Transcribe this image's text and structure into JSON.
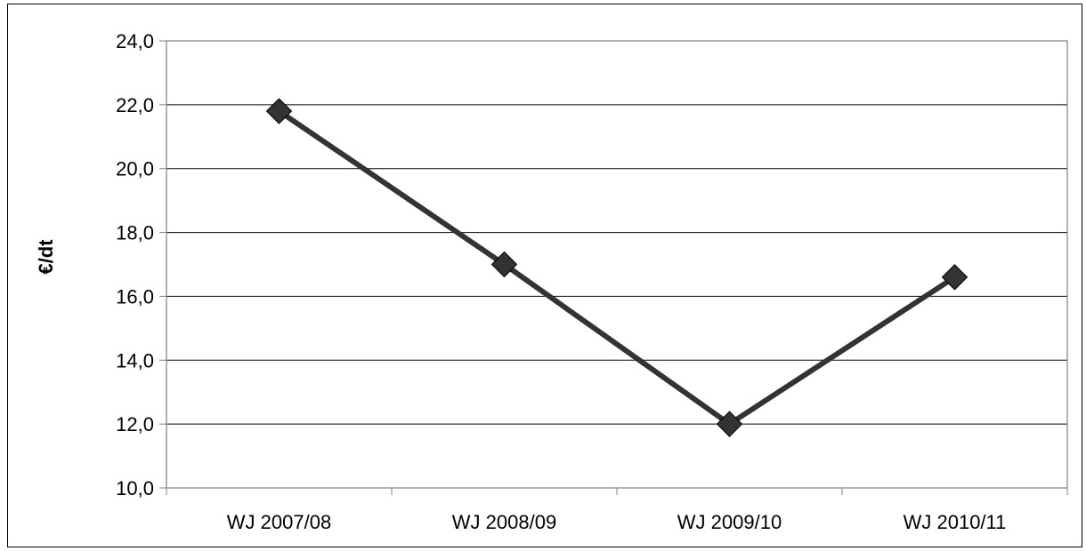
{
  "chart_data": {
    "type": "line",
    "title": "",
    "xlabel": "",
    "ylabel": "€/dt",
    "categories": [
      "WJ 2007/08",
      "WJ 2008/09",
      "WJ 2009/10",
      "WJ 2010/11"
    ],
    "series": [
      {
        "values": [
          21.8,
          17.0,
          12.0,
          16.6
        ]
      }
    ],
    "ylim": [
      10.0,
      24.0
    ],
    "yticks": [
      "10,0",
      "12,0",
      "14,0",
      "16,0",
      "18,0",
      "20,0",
      "22,0",
      "24,0"
    ],
    "grid": "horizontal",
    "legend": "none",
    "colors": {
      "line": "#333333",
      "marker": "#333333",
      "grid": "#000000",
      "axis": "#808080"
    },
    "marker": "diamond"
  }
}
